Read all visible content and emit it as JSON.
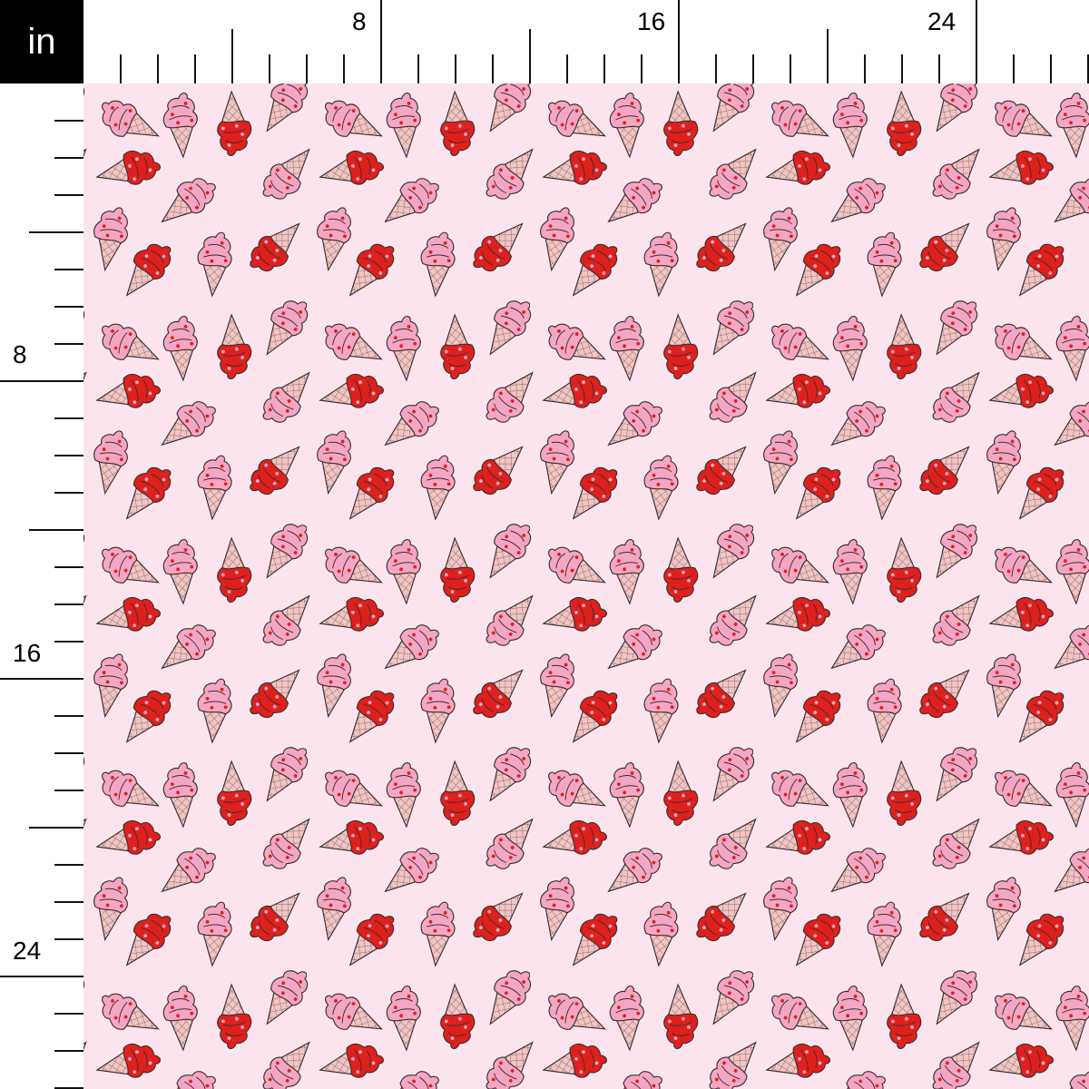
{
  "ruler": {
    "unit": "in",
    "top_labels": [
      "8",
      "16",
      "24"
    ],
    "left_labels": [
      "8",
      "16",
      "24"
    ]
  },
  "fabric": {
    "pattern": "ice cream cones with heart sprinkles",
    "colors": {
      "background": "#fbe4ee",
      "pink_scoop": "#f4a6c4",
      "red_scoop": "#e0201c",
      "cone": "#f2c4c4",
      "outline": "#3a2e2e"
    }
  }
}
